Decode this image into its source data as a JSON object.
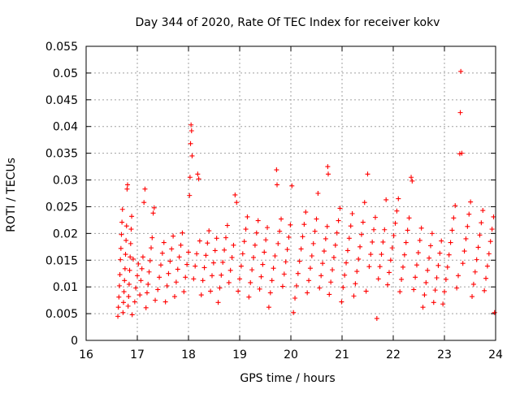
{
  "chart_data": {
    "type": "scatter",
    "title": "Day 344 of 2020, Rate Of TEC Index for receiver kokv",
    "xlabel": "GPS time / hours",
    "ylabel": "ROTI / TECUs",
    "xlim": [
      16,
      24
    ],
    "ylim": [
      0,
      0.055
    ],
    "x_ticks": [
      "16",
      "17",
      "18",
      "19",
      "20",
      "21",
      "22",
      "23",
      "24"
    ],
    "y_ticks": [
      "0",
      "0.005",
      "0.01",
      "0.015",
      "0.02",
      "0.025",
      "0.03",
      "0.035",
      "0.04",
      "0.045",
      "0.05",
      "0.055"
    ],
    "grid": true,
    "marker": "+",
    "color": "#ff0000",
    "points": [
      [
        16.62,
        0.0045
      ],
      [
        16.63,
        0.0062
      ],
      [
        16.64,
        0.0081
      ],
      [
        16.65,
        0.0102
      ],
      [
        16.66,
        0.0123
      ],
      [
        16.67,
        0.0151
      ],
      [
        16.68,
        0.0172
      ],
      [
        16.69,
        0.0198
      ],
      [
        16.7,
        0.0221
      ],
      [
        16.71,
        0.0245
      ],
      [
        16.72,
        0.0052
      ],
      [
        16.73,
        0.0071
      ],
      [
        16.74,
        0.0091
      ],
      [
        16.75,
        0.0112
      ],
      [
        16.76,
        0.0134
      ],
      [
        16.77,
        0.0161
      ],
      [
        16.78,
        0.0187
      ],
      [
        16.79,
        0.0214
      ],
      [
        16.8,
        0.0283
      ],
      [
        16.81,
        0.0291
      ],
      [
        16.82,
        0.0064
      ],
      [
        16.83,
        0.0082
      ],
      [
        16.84,
        0.0105
      ],
      [
        16.85,
        0.0131
      ],
      [
        16.86,
        0.0156
      ],
      [
        16.87,
        0.0181
      ],
      [
        16.88,
        0.0208
      ],
      [
        16.89,
        0.0232
      ],
      [
        16.9,
        0.0048
      ],
      [
        16.92,
        0.0152
      ],
      [
        16.95,
        0.0072
      ],
      [
        16.97,
        0.0098
      ],
      [
        17.0,
        0.0121
      ],
      [
        17.02,
        0.0143
      ],
      [
        17.05,
        0.0085
      ],
      [
        17.07,
        0.0112
      ],
      [
        17.09,
        0.0134
      ],
      [
        17.11,
        0.0156
      ],
      [
        17.13,
        0.0258
      ],
      [
        17.15,
        0.0283
      ],
      [
        17.17,
        0.0061
      ],
      [
        17.19,
        0.0089
      ],
      [
        17.21,
        0.0105
      ],
      [
        17.23,
        0.0128
      ],
      [
        17.25,
        0.0149
      ],
      [
        17.27,
        0.0173
      ],
      [
        17.29,
        0.0192
      ],
      [
        17.31,
        0.0238
      ],
      [
        17.33,
        0.0248
      ],
      [
        17.35,
        0.0075
      ],
      [
        17.4,
        0.0095
      ],
      [
        17.43,
        0.0118
      ],
      [
        17.46,
        0.0141
      ],
      [
        17.49,
        0.0163
      ],
      [
        17.52,
        0.0183
      ],
      [
        17.55,
        0.0072
      ],
      [
        17.58,
        0.0102
      ],
      [
        17.61,
        0.0125
      ],
      [
        17.64,
        0.0148
      ],
      [
        17.67,
        0.0171
      ],
      [
        17.7,
        0.0195
      ],
      [
        17.73,
        0.0082
      ],
      [
        17.76,
        0.0109
      ],
      [
        17.79,
        0.0133
      ],
      [
        17.82,
        0.0156
      ],
      [
        17.85,
        0.0178
      ],
      [
        17.88,
        0.0201
      ],
      [
        17.91,
        0.0091
      ],
      [
        17.94,
        0.0118
      ],
      [
        17.97,
        0.0142
      ],
      [
        18.0,
        0.0165
      ],
      [
        18.02,
        0.0271
      ],
      [
        18.03,
        0.0305
      ],
      [
        18.04,
        0.0368
      ],
      [
        18.05,
        0.0403
      ],
      [
        18.06,
        0.0392
      ],
      [
        18.07,
        0.0345
      ],
      [
        18.1,
        0.0115
      ],
      [
        18.13,
        0.0139
      ],
      [
        18.16,
        0.0162
      ],
      [
        18.18,
        0.0311
      ],
      [
        18.2,
        0.0302
      ],
      [
        18.22,
        0.0186
      ],
      [
        18.25,
        0.0085
      ],
      [
        18.28,
        0.0112
      ],
      [
        18.31,
        0.0136
      ],
      [
        18.34,
        0.0159
      ],
      [
        18.37,
        0.0182
      ],
      [
        18.4,
        0.0205
      ],
      [
        18.43,
        0.0092
      ],
      [
        18.46,
        0.0121
      ],
      [
        18.49,
        0.0145
      ],
      [
        18.52,
        0.0168
      ],
      [
        18.55,
        0.0191
      ],
      [
        18.58,
        0.0071
      ],
      [
        18.61,
        0.0098
      ],
      [
        18.64,
        0.0122
      ],
      [
        18.67,
        0.0146
      ],
      [
        18.7,
        0.0169
      ],
      [
        18.73,
        0.0192
      ],
      [
        18.76,
        0.0215
      ],
      [
        18.79,
        0.0108
      ],
      [
        18.82,
        0.0131
      ],
      [
        18.85,
        0.0155
      ],
      [
        18.88,
        0.0178
      ],
      [
        18.91,
        0.0272
      ],
      [
        18.94,
        0.0258
      ],
      [
        18.97,
        0.0092
      ],
      [
        19.0,
        0.0115
      ],
      [
        19.03,
        0.0139
      ],
      [
        19.06,
        0.0162
      ],
      [
        19.09,
        0.0185
      ],
      [
        19.12,
        0.0208
      ],
      [
        19.15,
        0.0231
      ],
      [
        19.18,
        0.0081
      ],
      [
        19.21,
        0.0108
      ],
      [
        19.24,
        0.0132
      ],
      [
        19.27,
        0.0155
      ],
      [
        19.3,
        0.0178
      ],
      [
        19.33,
        0.0201
      ],
      [
        19.36,
        0.0224
      ],
      [
        19.39,
        0.0096
      ],
      [
        19.42,
        0.0119
      ],
      [
        19.45,
        0.0142
      ],
      [
        19.48,
        0.0165
      ],
      [
        19.51,
        0.0188
      ],
      [
        19.54,
        0.0211
      ],
      [
        19.57,
        0.0062
      ],
      [
        19.6,
        0.0089
      ],
      [
        19.63,
        0.0112
      ],
      [
        19.66,
        0.0135
      ],
      [
        19.69,
        0.0158
      ],
      [
        19.72,
        0.0319
      ],
      [
        19.73,
        0.0291
      ],
      [
        19.75,
        0.0181
      ],
      [
        19.78,
        0.0204
      ],
      [
        19.81,
        0.0227
      ],
      [
        19.84,
        0.0101
      ],
      [
        19.87,
        0.0124
      ],
      [
        19.9,
        0.0147
      ],
      [
        19.93,
        0.017
      ],
      [
        19.96,
        0.0193
      ],
      [
        19.99,
        0.0216
      ],
      [
        20.02,
        0.0289
      ],
      [
        20.05,
        0.0052
      ],
      [
        20.08,
        0.0079
      ],
      [
        20.11,
        0.0102
      ],
      [
        20.14,
        0.0125
      ],
      [
        20.17,
        0.0148
      ],
      [
        20.2,
        0.0171
      ],
      [
        20.23,
        0.0194
      ],
      [
        20.26,
        0.0217
      ],
      [
        20.29,
        0.024
      ],
      [
        20.32,
        0.0089
      ],
      [
        20.35,
        0.0112
      ],
      [
        20.38,
        0.0135
      ],
      [
        20.41,
        0.0158
      ],
      [
        20.44,
        0.0181
      ],
      [
        20.47,
        0.0204
      ],
      [
        20.5,
        0.0227
      ],
      [
        20.53,
        0.0275
      ],
      [
        20.56,
        0.0098
      ],
      [
        20.59,
        0.0121
      ],
      [
        20.62,
        0.0144
      ],
      [
        20.65,
        0.0167
      ],
      [
        20.68,
        0.019
      ],
      [
        20.71,
        0.0213
      ],
      [
        20.72,
        0.0325
      ],
      [
        20.73,
        0.0311
      ],
      [
        20.75,
        0.0086
      ],
      [
        20.78,
        0.0109
      ],
      [
        20.81,
        0.0132
      ],
      [
        20.84,
        0.0155
      ],
      [
        20.87,
        0.0178
      ],
      [
        20.9,
        0.0201
      ],
      [
        20.93,
        0.0224
      ],
      [
        20.96,
        0.0247
      ],
      [
        20.99,
        0.0072
      ],
      [
        21.02,
        0.0099
      ],
      [
        21.05,
        0.0122
      ],
      [
        21.08,
        0.0145
      ],
      [
        21.11,
        0.0168
      ],
      [
        21.14,
        0.0191
      ],
      [
        21.17,
        0.0214
      ],
      [
        21.2,
        0.0237
      ],
      [
        21.23,
        0.0083
      ],
      [
        21.26,
        0.0106
      ],
      [
        21.29,
        0.0129
      ],
      [
        21.32,
        0.0152
      ],
      [
        21.35,
        0.0175
      ],
      [
        21.38,
        0.0198
      ],
      [
        21.41,
        0.0221
      ],
      [
        21.44,
        0.0258
      ],
      [
        21.47,
        0.0092
      ],
      [
        21.5,
        0.0311
      ],
      [
        21.53,
        0.0138
      ],
      [
        21.56,
        0.0161
      ],
      [
        21.59,
        0.0184
      ],
      [
        21.62,
        0.0207
      ],
      [
        21.65,
        0.023
      ],
      [
        21.68,
        0.0041
      ],
      [
        21.71,
        0.0115
      ],
      [
        21.74,
        0.0138
      ],
      [
        21.77,
        0.0161
      ],
      [
        21.8,
        0.0184
      ],
      [
        21.83,
        0.0207
      ],
      [
        21.86,
        0.0263
      ],
      [
        21.89,
        0.0104
      ],
      [
        21.92,
        0.0127
      ],
      [
        21.95,
        0.015
      ],
      [
        21.98,
        0.0173
      ],
      [
        22.01,
        0.0196
      ],
      [
        22.04,
        0.0219
      ],
      [
        22.07,
        0.0242
      ],
      [
        22.1,
        0.0265
      ],
      [
        22.13,
        0.0091
      ],
      [
        22.16,
        0.0114
      ],
      [
        22.19,
        0.0137
      ],
      [
        22.22,
        0.016
      ],
      [
        22.25,
        0.0183
      ],
      [
        22.28,
        0.0206
      ],
      [
        22.31,
        0.0229
      ],
      [
        22.35,
        0.0305
      ],
      [
        22.37,
        0.0298
      ],
      [
        22.4,
        0.0095
      ],
      [
        22.43,
        0.0118
      ],
      [
        22.46,
        0.0141
      ],
      [
        22.49,
        0.0164
      ],
      [
        22.52,
        0.0187
      ],
      [
        22.55,
        0.021
      ],
      [
        22.58,
        0.0062
      ],
      [
        22.61,
        0.0085
      ],
      [
        22.64,
        0.0108
      ],
      [
        22.67,
        0.0131
      ],
      [
        22.7,
        0.0154
      ],
      [
        22.73,
        0.0177
      ],
      [
        22.76,
        0.02
      ],
      [
        22.79,
        0.0071
      ],
      [
        22.82,
        0.0094
      ],
      [
        22.85,
        0.0117
      ],
      [
        22.88,
        0.014
      ],
      [
        22.91,
        0.0163
      ],
      [
        22.94,
        0.0186
      ],
      [
        22.97,
        0.0068
      ],
      [
        23.0,
        0.0091
      ],
      [
        23.03,
        0.0114
      ],
      [
        23.06,
        0.0137
      ],
      [
        23.09,
        0.016
      ],
      [
        23.12,
        0.0183
      ],
      [
        23.15,
        0.0206
      ],
      [
        23.18,
        0.0229
      ],
      [
        23.21,
        0.0252
      ],
      [
        23.24,
        0.0098
      ],
      [
        23.27,
        0.0121
      ],
      [
        23.3,
        0.0349
      ],
      [
        23.31,
        0.0426
      ],
      [
        23.32,
        0.0503
      ],
      [
        23.34,
        0.035
      ],
      [
        23.36,
        0.0144
      ],
      [
        23.39,
        0.0167
      ],
      [
        23.42,
        0.019
      ],
      [
        23.45,
        0.0213
      ],
      [
        23.48,
        0.0236
      ],
      [
        23.51,
        0.0259
      ],
      [
        23.54,
        0.0082
      ],
      [
        23.57,
        0.0105
      ],
      [
        23.6,
        0.0128
      ],
      [
        23.63,
        0.0151
      ],
      [
        23.66,
        0.0174
      ],
      [
        23.69,
        0.0197
      ],
      [
        23.72,
        0.022
      ],
      [
        23.75,
        0.0243
      ],
      [
        23.78,
        0.0093
      ],
      [
        23.81,
        0.0116
      ],
      [
        23.84,
        0.0139
      ],
      [
        23.87,
        0.0162
      ],
      [
        23.9,
        0.0185
      ],
      [
        23.93,
        0.0208
      ],
      [
        23.96,
        0.0231
      ],
      [
        23.98,
        0.0052
      ]
    ]
  }
}
